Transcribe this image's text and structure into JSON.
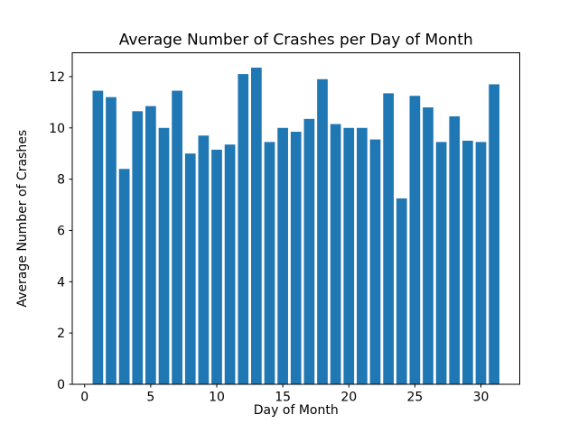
{
  "chart_data": {
    "type": "bar",
    "title": "Average Number of Crashes per Day of Month",
    "xlabel": "Day of Month",
    "ylabel": "Average Number of Crashes",
    "categories": [
      1,
      2,
      3,
      4,
      5,
      6,
      7,
      8,
      9,
      10,
      11,
      12,
      13,
      14,
      15,
      16,
      17,
      18,
      19,
      20,
      21,
      22,
      23,
      24,
      25,
      26,
      27,
      28,
      29,
      30,
      31
    ],
    "values": [
      11.45,
      11.2,
      8.4,
      10.65,
      10.85,
      10.0,
      11.45,
      9.0,
      9.7,
      9.15,
      9.35,
      12.1,
      12.35,
      9.45,
      10.0,
      9.85,
      10.35,
      11.9,
      10.15,
      10.0,
      10.0,
      9.55,
      11.35,
      7.25,
      11.25,
      10.8,
      9.45,
      10.45,
      9.5,
      9.45,
      11.7
    ],
    "bar_color": "#1f77b4",
    "bar_width_units": 0.8,
    "xlim": [
      -0.94,
      32.94
    ],
    "ylim": [
      0,
      12.93
    ],
    "xticks": [
      0,
      5,
      10,
      15,
      20,
      25,
      30
    ],
    "yticks": [
      0,
      2,
      4,
      6,
      8,
      10,
      12
    ],
    "grid": false,
    "legend": null,
    "spine_color": "#000000",
    "background_color": "#ffffff"
  }
}
